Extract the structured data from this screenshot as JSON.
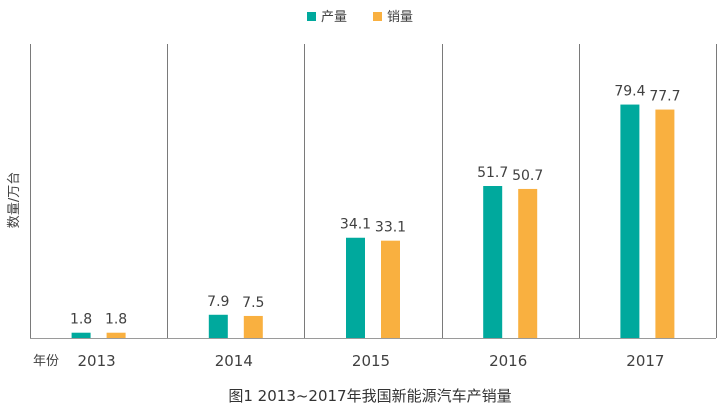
{
  "chart_data": {
    "type": "bar",
    "title": "",
    "caption": "图1  2013~2017年我国新能源汽车产销量",
    "xlabel": "年份",
    "ylabel": "数量/万台",
    "categories": [
      "2013",
      "2014",
      "2015",
      "2016",
      "2017"
    ],
    "series": [
      {
        "name": "产量",
        "color": "#00A99D",
        "values": [
          1.8,
          7.9,
          34.1,
          51.7,
          79.4
        ]
      },
      {
        "name": "销量",
        "color": "#F9B040",
        "values": [
          1.8,
          7.5,
          33.1,
          50.7,
          77.7
        ]
      }
    ],
    "ylim": [
      0,
      100
    ],
    "grid": false,
    "category_separators": true,
    "legend_position": "top-center",
    "data_labels": true
  }
}
